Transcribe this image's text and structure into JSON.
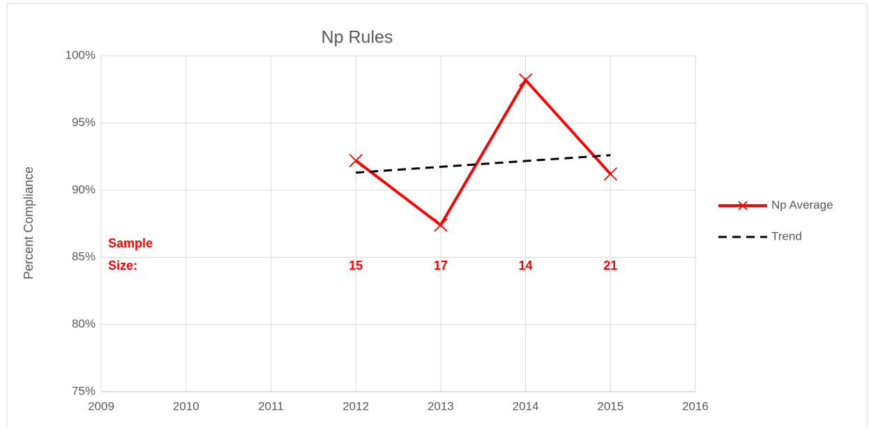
{
  "chart_data": {
    "type": "line",
    "title": "Np Rules",
    "y_label": "Percent Compliance",
    "xlim": [
      2009,
      2016
    ],
    "xticks": [
      2009,
      2010,
      2011,
      2012,
      2013,
      2014,
      2015,
      2016
    ],
    "ylim": [
      75,
      100
    ],
    "yticks": [
      {
        "value": 75,
        "label": "75%"
      },
      {
        "value": 80,
        "label": "80%"
      },
      {
        "value": 85,
        "label": "85%"
      },
      {
        "value": 90,
        "label": "90%"
      },
      {
        "value": 95,
        "label": "95%"
      },
      {
        "value": 100,
        "label": "100%"
      }
    ],
    "grid": true,
    "legend": "right",
    "series": [
      {
        "name": "Np Average",
        "color": "#ff0000",
        "marker": "x",
        "x": [
          2012,
          2013,
          2014,
          2015
        ],
        "values": [
          92.2,
          87.4,
          98.2,
          91.2
        ]
      },
      {
        "name": "Trend",
        "color": "#000000",
        "dash": true,
        "x": [
          2012,
          2015
        ],
        "values": [
          91.3,
          92.6
        ]
      }
    ],
    "annotation_lines": [
      "Sample",
      "Size:"
    ],
    "sample_size_x": [
      2012,
      2013,
      2014,
      2015
    ],
    "sample_sizes": [
      15,
      17,
      14,
      21
    ],
    "annotation_color": "#ff0000"
  }
}
